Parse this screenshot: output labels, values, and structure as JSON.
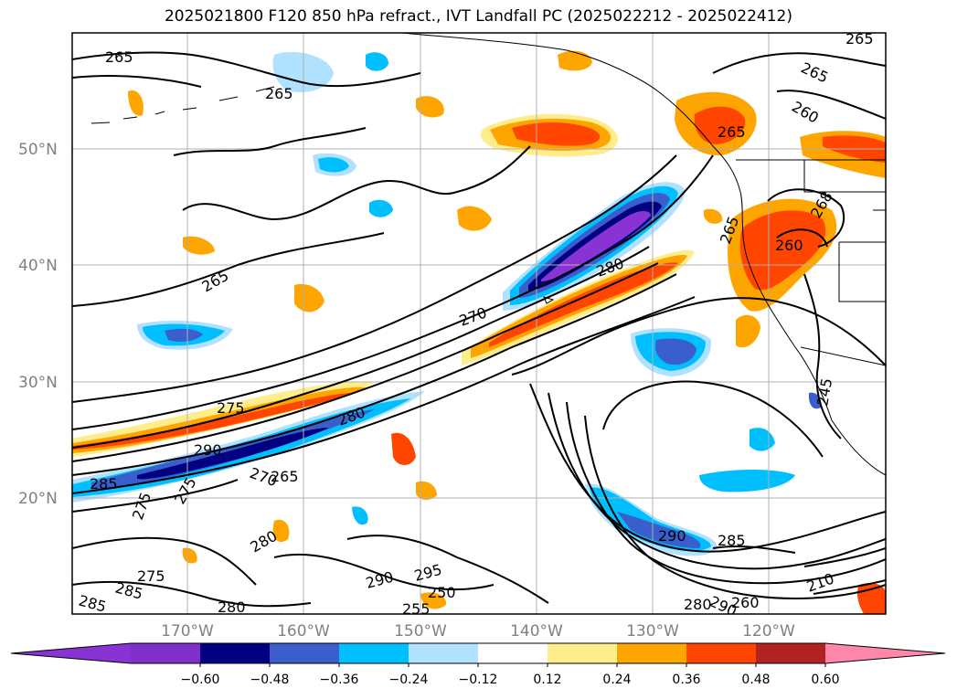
{
  "title": "2025021800 F120 850 hPa refract., IVT Landfall PC (2025022212 - 2025022412)",
  "lat_labels": [
    "50°N",
    "40°N",
    "30°N",
    "20°N"
  ],
  "lon_labels": [
    "170°W",
    "160°W",
    "150°W",
    "140°W",
    "130°W",
    "120°W"
  ],
  "contour_labels": [
    "265",
    "265",
    "265",
    "265",
    "260",
    "265",
    "265",
    "260",
    "268",
    "265",
    "280",
    "275",
    "280",
    "290",
    "285",
    "275",
    "270",
    "265",
    "280",
    "275",
    "285",
    "285",
    "275",
    "280",
    "290",
    "295",
    "250",
    "255",
    "290",
    "285",
    "280",
    "290",
    "260",
    "210",
    "270",
    "245"
  ],
  "colorbar": {
    "ticks": [
      "−0.60",
      "−0.48",
      "−0.36",
      "−0.24",
      "−0.12",
      "0.12",
      "0.24",
      "0.36",
      "0.48",
      "0.60"
    ],
    "colors": [
      "#8a33d4",
      "#7f30c8",
      "#000080",
      "#3a5fcd",
      "#00bfff",
      "#b0e2ff",
      "#ffffff",
      "#ffec8b",
      "#ffa500",
      "#ff4500",
      "#b22222",
      "#ff88aa"
    ]
  }
}
